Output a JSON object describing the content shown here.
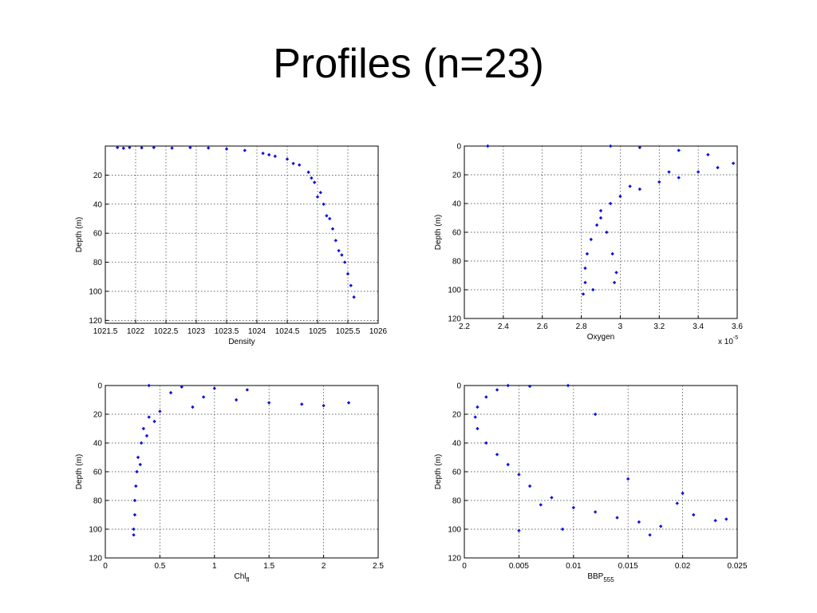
{
  "slide": {
    "title": "Profiles (n=23)"
  },
  "chart_data": [
    {
      "type": "scatter",
      "xlabel": "Density",
      "ylabel": "Depth (m)",
      "xlim": [
        1021.5,
        1026
      ],
      "ylim": [
        0,
        122
      ],
      "y_reversed": true,
      "grid": true,
      "xticks": [
        "1021.5",
        "1022",
        "1022.5",
        "1023",
        "1023.5",
        "1024",
        "1024.5",
        "1025",
        "1025.5",
        "1026"
      ],
      "yticks": [
        "20",
        "40",
        "60",
        "80",
        "100",
        "120"
      ],
      "marker_color": "#1010e0",
      "points": [
        [
          1021.7,
          1
        ],
        [
          1021.8,
          1.5
        ],
        [
          1021.9,
          1
        ],
        [
          1022.1,
          1.2
        ],
        [
          1022.3,
          1
        ],
        [
          1022.6,
          1.4
        ],
        [
          1022.9,
          1
        ],
        [
          1023.2,
          1.3
        ],
        [
          1023.5,
          2
        ],
        [
          1023.8,
          3
        ],
        [
          1024.1,
          5
        ],
        [
          1024.3,
          7
        ],
        [
          1024.5,
          9
        ],
        [
          1024.7,
          13
        ],
        [
          1024.85,
          18
        ],
        [
          1024.95,
          25
        ],
        [
          1025.05,
          32
        ],
        [
          1025.1,
          40
        ],
        [
          1025.15,
          48
        ],
        [
          1025.25,
          57
        ],
        [
          1025.3,
          65
        ],
        [
          1025.35,
          72
        ],
        [
          1025.45,
          80
        ],
        [
          1025.5,
          88
        ],
        [
          1025.55,
          96
        ],
        [
          1025.6,
          104
        ],
        [
          1024.2,
          6
        ],
        [
          1024.6,
          12
        ],
        [
          1024.9,
          22
        ],
        [
          1025.0,
          35
        ],
        [
          1025.2,
          50
        ],
        [
          1025.4,
          75
        ]
      ]
    },
    {
      "type": "scatter",
      "xlabel": "Oxygen",
      "xscale_label": "x 10",
      "xscale_exp": "-5",
      "ylabel": "Depth (m)",
      "xlim": [
        2.2,
        3.6
      ],
      "ylim": [
        0,
        120
      ],
      "y_reversed": true,
      "grid": true,
      "xticks": [
        "2.2",
        "2.4",
        "2.6",
        "2.8",
        "3",
        "3.2",
        "3.4",
        "3.6"
      ],
      "yticks": [
        "0",
        "20",
        "40",
        "60",
        "80",
        "100",
        "120"
      ],
      "marker_color": "#1010e0",
      "points": [
        [
          2.32,
          0
        ],
        [
          2.95,
          0
        ],
        [
          3.1,
          1
        ],
        [
          3.3,
          3
        ],
        [
          3.45,
          6
        ],
        [
          3.58,
          12
        ],
        [
          3.5,
          15
        ],
        [
          3.4,
          18
        ],
        [
          3.3,
          22
        ],
        [
          3.2,
          25
        ],
        [
          3.1,
          30
        ],
        [
          3.0,
          35
        ],
        [
          2.95,
          40
        ],
        [
          2.9,
          45
        ],
        [
          2.88,
          55
        ],
        [
          2.85,
          65
        ],
        [
          2.83,
          75
        ],
        [
          2.82,
          85
        ],
        [
          2.82,
          95
        ],
        [
          2.81,
          103
        ],
        [
          2.93,
          60
        ],
        [
          2.96,
          75
        ],
        [
          2.98,
          88
        ],
        [
          2.97,
          95
        ],
        [
          2.86,
          100
        ],
        [
          2.9,
          50
        ],
        [
          3.05,
          28
        ],
        [
          3.25,
          18
        ]
      ]
    },
    {
      "type": "scatter",
      "xlabel": "Chl",
      "xlabel_sub": "fl",
      "ylabel": "Depth (m)",
      "xlim": [
        0,
        2.5
      ],
      "ylim": [
        0,
        120
      ],
      "y_reversed": true,
      "grid": true,
      "xticks": [
        "0",
        "0.5",
        "1",
        "1.5",
        "2",
        "2.5"
      ],
      "yticks": [
        "0",
        "20",
        "40",
        "60",
        "80",
        "100",
        "120"
      ],
      "marker_color": "#1010e0",
      "points": [
        [
          0.4,
          0
        ],
        [
          0.7,
          1
        ],
        [
          1.0,
          2
        ],
        [
          1.3,
          3
        ],
        [
          0.6,
          5
        ],
        [
          0.9,
          8
        ],
        [
          1.2,
          10
        ],
        [
          1.5,
          12
        ],
        [
          1.8,
          13
        ],
        [
          2.0,
          14
        ],
        [
          2.23,
          12
        ],
        [
          0.8,
          15
        ],
        [
          0.5,
          18
        ],
        [
          0.4,
          22
        ],
        [
          0.35,
          30
        ],
        [
          0.33,
          40
        ],
        [
          0.3,
          50
        ],
        [
          0.29,
          60
        ],
        [
          0.28,
          70
        ],
        [
          0.27,
          80
        ],
        [
          0.27,
          90
        ],
        [
          0.26,
          100
        ],
        [
          0.26,
          104
        ],
        [
          0.38,
          35
        ],
        [
          0.45,
          25
        ],
        [
          0.32,
          55
        ]
      ]
    },
    {
      "type": "scatter",
      "xlabel": "BBP",
      "xlabel_sub": "555",
      "ylabel": "Depth (m)",
      "xlim": [
        0,
        0.025
      ],
      "ylim": [
        0,
        120
      ],
      "y_reversed": true,
      "grid": true,
      "xticks": [
        "0",
        "0.005",
        "0.01",
        "0.015",
        "0.02",
        "0.025"
      ],
      "yticks": [
        "0",
        "20",
        "40",
        "60",
        "80",
        "100",
        "120"
      ],
      "marker_color": "#1010e0",
      "points": [
        [
          0.004,
          0
        ],
        [
          0.006,
          0.5
        ],
        [
          0.0095,
          0
        ],
        [
          0.003,
          3
        ],
        [
          0.002,
          8
        ],
        [
          0.0012,
          15
        ],
        [
          0.001,
          22
        ],
        [
          0.0012,
          30
        ],
        [
          0.002,
          40
        ],
        [
          0.003,
          48
        ],
        [
          0.004,
          55
        ],
        [
          0.005,
          62
        ],
        [
          0.006,
          70
        ],
        [
          0.008,
          78
        ],
        [
          0.01,
          85
        ],
        [
          0.012,
          88
        ],
        [
          0.014,
          92
        ],
        [
          0.016,
          95
        ],
        [
          0.018,
          98
        ],
        [
          0.0195,
          82
        ],
        [
          0.02,
          75
        ],
        [
          0.021,
          90
        ],
        [
          0.023,
          94
        ],
        [
          0.024,
          93
        ],
        [
          0.015,
          65
        ],
        [
          0.012,
          20
        ],
        [
          0.007,
          83
        ],
        [
          0.009,
          100
        ],
        [
          0.005,
          101
        ],
        [
          0.017,
          104
        ]
      ]
    }
  ]
}
